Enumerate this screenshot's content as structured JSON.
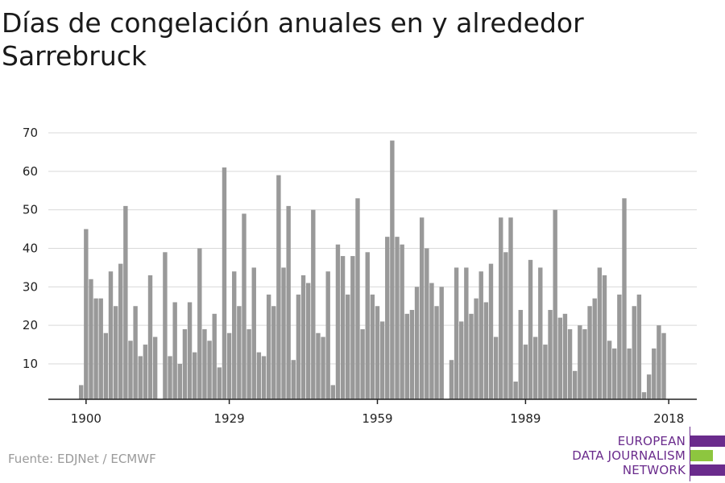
{
  "title": "Días de congelación anuales en y alrededor Sarrebruck",
  "source": "Fuente: EDJNet / ECMWF",
  "logo": {
    "lines": [
      "EUROPEAN",
      "DATA JOURNALISM",
      "NETWORK"
    ],
    "colors": {
      "purple": "#6a2b8c",
      "green": "#8dc63f"
    }
  },
  "colors": {
    "bar": "#999999",
    "grid": "#d9d9d9",
    "axis": "#222222"
  },
  "chart_data": {
    "type": "bar",
    "title": "Días de congelación anuales en y alrededor Sarrebruck",
    "xlabel": "",
    "ylabel": "",
    "x_start": 1899,
    "ylim": [
      0,
      70
    ],
    "yticks": [
      10,
      20,
      30,
      40,
      50,
      60,
      70
    ],
    "xticks": [
      1900,
      1929,
      1959,
      1989,
      2018
    ],
    "grid": true,
    "values": [
      4,
      45,
      32,
      27,
      27,
      18,
      34,
      25,
      36,
      51,
      16,
      25,
      12,
      15,
      33,
      17,
      0,
      39,
      12,
      26,
      10,
      19,
      26,
      13,
      40,
      19,
      16,
      23,
      9,
      61,
      18,
      34,
      25,
      49,
      19,
      35,
      13,
      12,
      28,
      25,
      59,
      35,
      51,
      11,
      28,
      33,
      31,
      50,
      18,
      17,
      34,
      4,
      41,
      38,
      28,
      38,
      53,
      19,
      39,
      28,
      25,
      21,
      43,
      68,
      43,
      41,
      23,
      24,
      30,
      48,
      40,
      31,
      25,
      30,
      0,
      11,
      35,
      21,
      35,
      23,
      27,
      34,
      26,
      36,
      17,
      48,
      39,
      48,
      5,
      24,
      15,
      37,
      17,
      35,
      15,
      24,
      50,
      22,
      23,
      19,
      8,
      20,
      19,
      25,
      27,
      35,
      33,
      16,
      14,
      28,
      53,
      14,
      25,
      28,
      2,
      7,
      14,
      20,
      18
    ]
  }
}
